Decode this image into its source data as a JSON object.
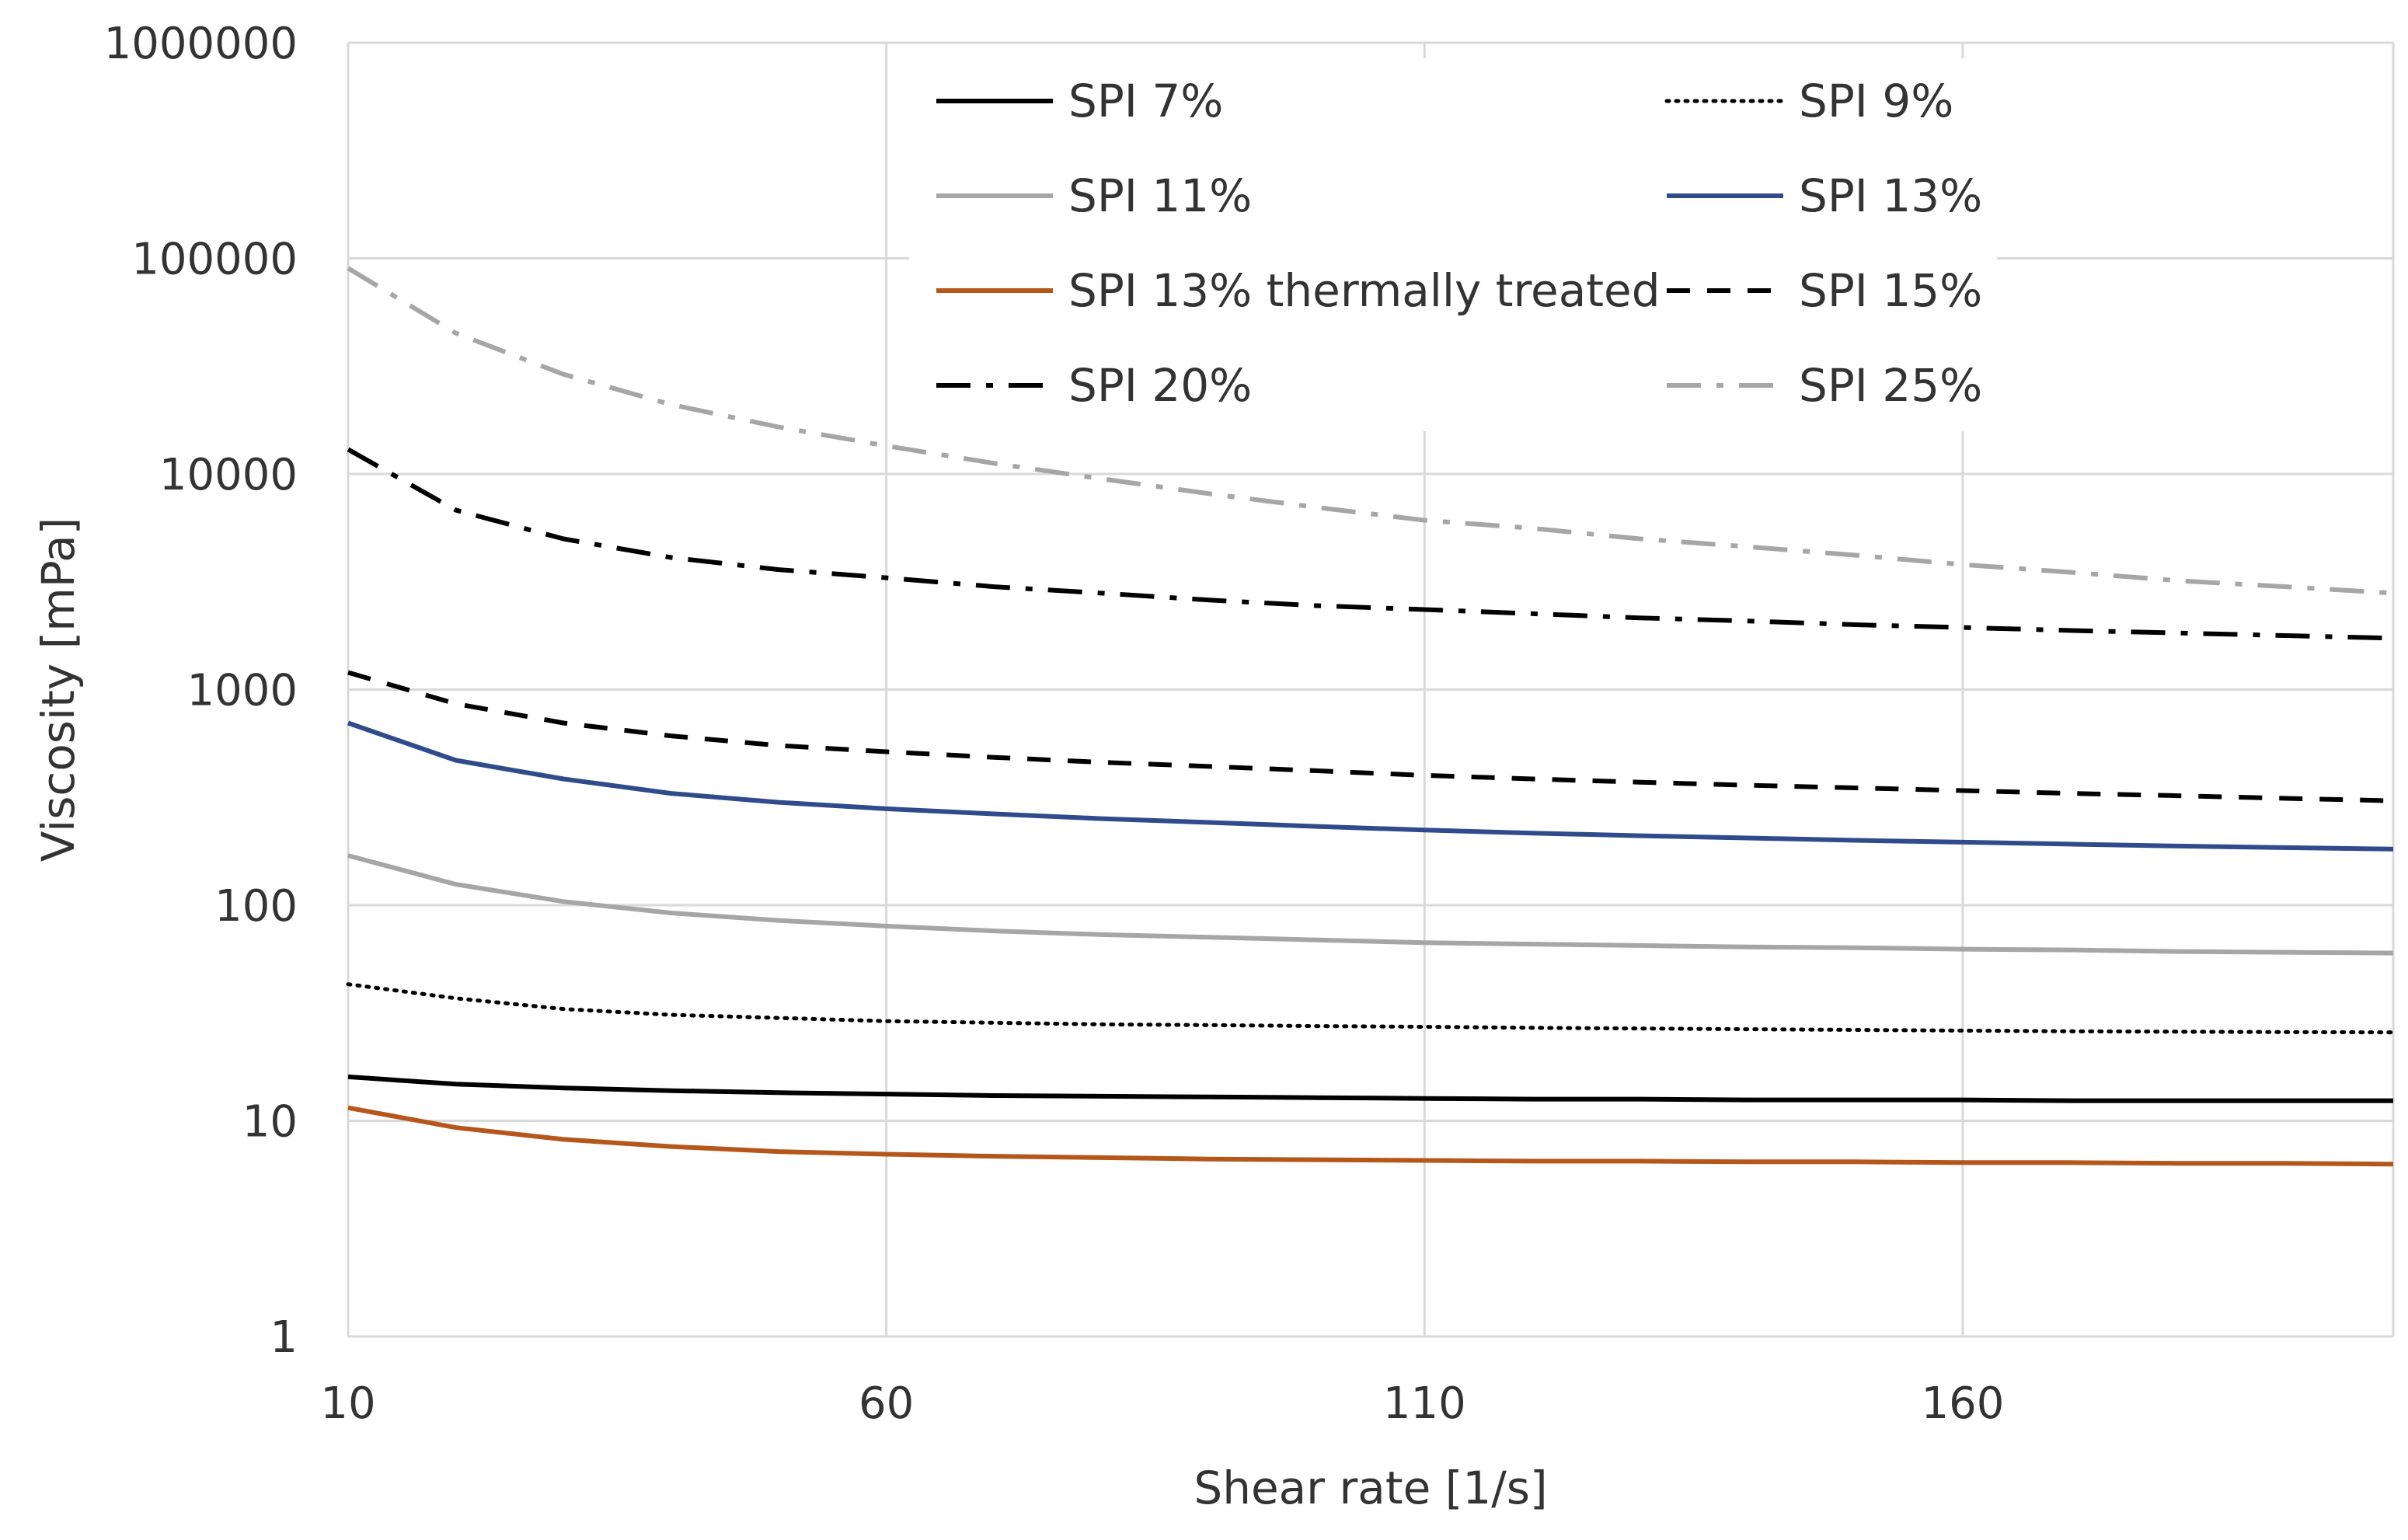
{
  "chart_data": {
    "type": "line",
    "title": "",
    "xlabel": "Shear rate [1/s]",
    "ylabel": "Viscosity [mPa]",
    "xlim": [
      10,
      200
    ],
    "ylim": [
      1,
      1000000
    ],
    "yscale": "log",
    "grid": true,
    "legend": {
      "position": "top-right",
      "columns": 2
    },
    "x_ticks": [
      10,
      60,
      110,
      160
    ],
    "x_tick_labels": [
      "10",
      "60",
      "110",
      "160"
    ],
    "y_ticks": [
      1,
      10,
      100,
      1000,
      10000,
      100000,
      1000000
    ],
    "y_tick_labels": [
      "1",
      "10",
      "100",
      "1000",
      "10000",
      "100000",
      "1000000"
    ],
    "x": [
      10,
      20,
      30,
      40,
      50,
      60,
      70,
      80,
      90,
      100,
      110,
      120,
      130,
      140,
      150,
      160,
      170,
      180,
      190,
      200
    ],
    "series": [
      {
        "name": "SPI 7%",
        "color": "#000000",
        "style": "solid",
        "values": [
          16,
          14.8,
          14.2,
          13.8,
          13.5,
          13.3,
          13.1,
          13,
          12.9,
          12.8,
          12.7,
          12.6,
          12.6,
          12.5,
          12.5,
          12.5,
          12.4,
          12.4,
          12.4,
          12.4
        ]
      },
      {
        "name": "SPI 9%",
        "color": "#000000",
        "style": "dotted",
        "values": [
          43,
          37,
          33,
          31,
          30,
          29,
          28.5,
          28,
          27.8,
          27.5,
          27.3,
          27,
          26.8,
          26.6,
          26.4,
          26.2,
          26,
          25.9,
          25.8,
          25.7
        ]
      },
      {
        "name": "SPI 11%",
        "color": "#a6a6a6",
        "style": "solid",
        "values": [
          170,
          125,
          104,
          92,
          85,
          80,
          76,
          73,
          71,
          69,
          67,
          66,
          65,
          64,
          63.5,
          62.5,
          62,
          61,
          60.5,
          60
        ]
      },
      {
        "name": "SPI 13%",
        "color": "#2f4b8c",
        "style": "solid",
        "values": [
          700,
          470,
          385,
          330,
          300,
          280,
          265,
          252,
          242,
          232,
          223,
          216,
          210,
          205,
          200,
          196,
          192,
          188,
          185,
          182
        ]
      },
      {
        "name": "SPI 13% thermally treated",
        "color": "#b5571a",
        "style": "solid",
        "values": [
          11.5,
          9.3,
          8.2,
          7.6,
          7.2,
          7,
          6.85,
          6.75,
          6.65,
          6.6,
          6.55,
          6.5,
          6.5,
          6.45,
          6.45,
          6.4,
          6.4,
          6.35,
          6.35,
          6.3
        ]
      },
      {
        "name": "SPI 15%",
        "color": "#000000",
        "style": "dashed",
        "values": [
          1200,
          860,
          700,
          610,
          550,
          515,
          485,
          460,
          440,
          420,
          400,
          385,
          372,
          360,
          350,
          340,
          330,
          322,
          313,
          305
        ]
      },
      {
        "name": "SPI 20%",
        "color": "#000000",
        "style": "dashdot",
        "values": [
          13000,
          6800,
          5000,
          4100,
          3600,
          3300,
          3000,
          2800,
          2600,
          2450,
          2350,
          2250,
          2150,
          2080,
          2000,
          1940,
          1880,
          1830,
          1780,
          1730
        ]
      },
      {
        "name": "SPI 25%",
        "color": "#a6a6a6",
        "style": "dashdot",
        "values": [
          90000,
          45000,
          29000,
          21000,
          16500,
          13500,
          11200,
          9500,
          8100,
          7000,
          6100,
          5600,
          5000,
          4600,
          4200,
          3800,
          3500,
          3200,
          3000,
          2800
        ]
      }
    ]
  }
}
